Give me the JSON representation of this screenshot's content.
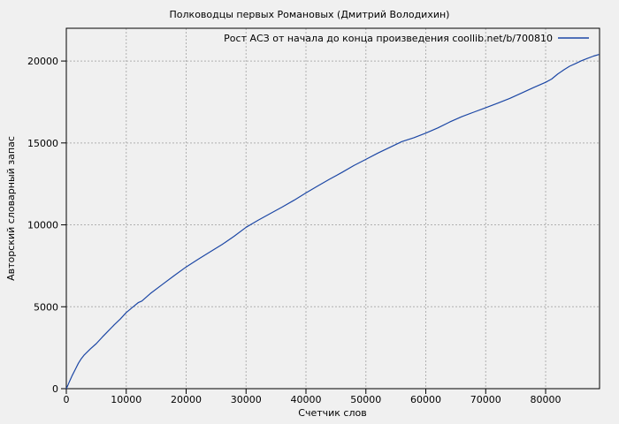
{
  "figure": {
    "background": "#f0f0f0",
    "border_color": "#000000",
    "grid_color": "#b0b0b0",
    "text_color": "#000000"
  },
  "chart_data": {
    "type": "line",
    "title": "Полководцы первых Романовых (Дмитрий Володихин)",
    "xlabel": "Счетчик слов",
    "ylabel": "Авторский словарный запас",
    "grid": true,
    "legend_position": "top-right-inside",
    "xlim": [
      0,
      89000
    ],
    "ylim": [
      0,
      22000
    ],
    "xticks": [
      0,
      10000,
      20000,
      30000,
      40000,
      50000,
      60000,
      70000,
      80000
    ],
    "yticks": [
      0,
      5000,
      10000,
      15000,
      20000
    ],
    "series": [
      {
        "name": "Рост АСЗ от начала до конца произведения coollib.net/b/700810",
        "color": "#1c47a5",
        "points": [
          [
            0,
            0
          ],
          [
            250,
            200
          ],
          [
            500,
            420
          ],
          [
            1000,
            820
          ],
          [
            1500,
            1180
          ],
          [
            2000,
            1550
          ],
          [
            2500,
            1830
          ],
          [
            3000,
            2060
          ],
          [
            4000,
            2420
          ],
          [
            5000,
            2750
          ],
          [
            6000,
            3150
          ],
          [
            7000,
            3520
          ],
          [
            8000,
            3900
          ],
          [
            9000,
            4250
          ],
          [
            10000,
            4650
          ],
          [
            11000,
            4950
          ],
          [
            12000,
            5250
          ],
          [
            12600,
            5350
          ],
          [
            14000,
            5800
          ],
          [
            16000,
            6350
          ],
          [
            18000,
            6900
          ],
          [
            20000,
            7430
          ],
          [
            22000,
            7900
          ],
          [
            24000,
            8350
          ],
          [
            26000,
            8800
          ],
          [
            28000,
            9300
          ],
          [
            30000,
            9850
          ],
          [
            32000,
            10280
          ],
          [
            34000,
            10680
          ],
          [
            36000,
            11080
          ],
          [
            38000,
            11500
          ],
          [
            40000,
            11950
          ],
          [
            42000,
            12380
          ],
          [
            44000,
            12800
          ],
          [
            46000,
            13200
          ],
          [
            48000,
            13620
          ],
          [
            50000,
            14000
          ],
          [
            52000,
            14380
          ],
          [
            54000,
            14730
          ],
          [
            56000,
            15080
          ],
          [
            58000,
            15320
          ],
          [
            60000,
            15600
          ],
          [
            62000,
            15920
          ],
          [
            64000,
            16280
          ],
          [
            66000,
            16600
          ],
          [
            68000,
            16880
          ],
          [
            70000,
            17150
          ],
          [
            72000,
            17430
          ],
          [
            74000,
            17720
          ],
          [
            76000,
            18050
          ],
          [
            78000,
            18380
          ],
          [
            80000,
            18700
          ],
          [
            81000,
            18900
          ],
          [
            82000,
            19200
          ],
          [
            83000,
            19450
          ],
          [
            84000,
            19680
          ],
          [
            85000,
            19850
          ],
          [
            86000,
            20020
          ],
          [
            87000,
            20160
          ],
          [
            88000,
            20300
          ],
          [
            88900,
            20400
          ]
        ]
      }
    ]
  }
}
